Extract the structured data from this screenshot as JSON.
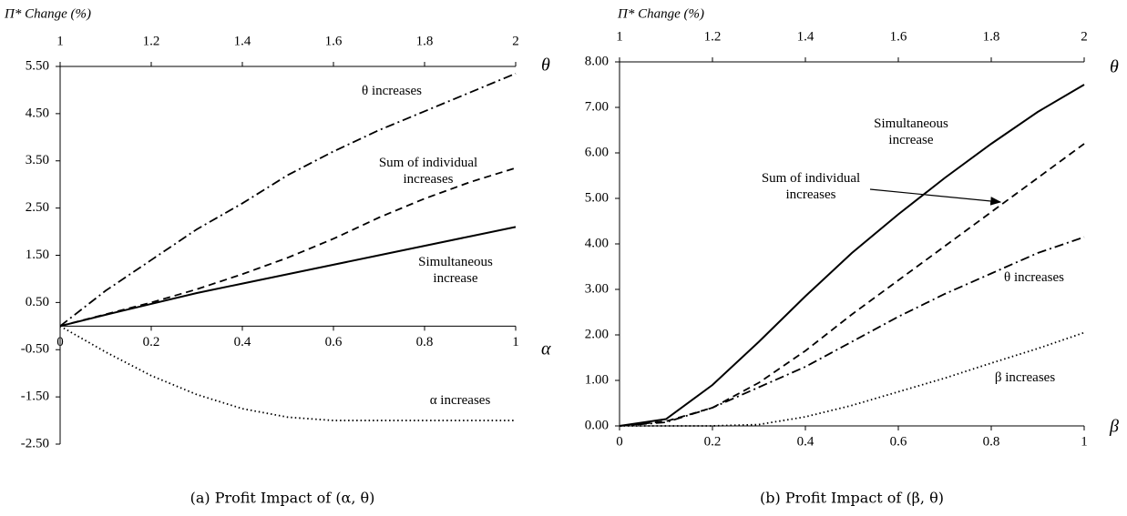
{
  "chart_data": [
    {
      "type": "line",
      "caption": "(a) Profit Impact of (α, θ)",
      "y_label": "Π* Change (%)",
      "x_label": "α",
      "x2_label": "θ",
      "x": [
        0,
        0.1,
        0.2,
        0.3,
        0.4,
        0.5,
        0.6,
        0.7,
        0.8,
        0.9,
        1
      ],
      "xlim": [
        0,
        1
      ],
      "xticks": [
        0,
        0.2,
        0.4,
        0.6,
        0.8,
        1
      ],
      "x2lim": [
        1,
        2
      ],
      "x2ticks": [
        1,
        1.2,
        1.4,
        1.6,
        1.8,
        2
      ],
      "ylim": [
        -2.5,
        5.5
      ],
      "yticks": [
        {
          "value": -2.5,
          "label": "-2.50"
        },
        {
          "value": -1.5,
          "label": "-1.50"
        },
        {
          "value": -0.5,
          "label": "-0.50"
        },
        {
          "value": 0.5,
          "label": "0.50"
        },
        {
          "value": 1.5,
          "label": "1.50"
        },
        {
          "value": 2.5,
          "label": "2.50"
        },
        {
          "value": 3.5,
          "label": "3.50"
        },
        {
          "value": 4.5,
          "label": "4.50"
        },
        {
          "value": 5.5,
          "label": "5.50"
        }
      ],
      "grid": false,
      "series": [
        {
          "name": "θ increases",
          "color": "#000000",
          "dash": "dash-dot",
          "values": [
            0,
            0.75,
            1.4,
            2.05,
            2.6,
            3.2,
            3.7,
            4.15,
            4.55,
            4.95,
            5.35
          ]
        },
        {
          "name": "Sum of individual increases",
          "color": "#000000",
          "dash": "dashed",
          "values": [
            0,
            0.25,
            0.5,
            0.78,
            1.1,
            1.45,
            1.85,
            2.3,
            2.7,
            3.05,
            3.35
          ]
        },
        {
          "name": "Simultaneous increase",
          "color": "#000000",
          "dash": "solid",
          "values": [
            0,
            0.24,
            0.47,
            0.7,
            0.9,
            1.1,
            1.3,
            1.5,
            1.7,
            1.9,
            2.1
          ]
        },
        {
          "name": "α increases",
          "color": "#000000",
          "dash": "dotted",
          "values": [
            0,
            -0.55,
            -1.05,
            -1.45,
            -1.75,
            -1.93,
            -2.0,
            -2.0,
            -2.0,
            -2.0,
            -2.0
          ]
        }
      ]
    },
    {
      "type": "line",
      "caption": "(b) Profit Impact of (β, θ)",
      "y_label": "Π* Change (%)",
      "x_label": "β",
      "x2_label": "θ",
      "x": [
        0,
        0.1,
        0.2,
        0.3,
        0.4,
        0.5,
        0.6,
        0.7,
        0.8,
        0.9,
        1
      ],
      "xlim": [
        0,
        1
      ],
      "xticks": [
        0,
        0.2,
        0.4,
        0.6,
        0.8,
        1
      ],
      "x2lim": [
        1,
        2
      ],
      "x2ticks": [
        1,
        1.2,
        1.4,
        1.6,
        1.8,
        2
      ],
      "ylim": [
        0,
        8
      ],
      "yticks": [
        {
          "value": 0,
          "label": "0.00"
        },
        {
          "value": 1,
          "label": "1.00"
        },
        {
          "value": 2,
          "label": "2.00"
        },
        {
          "value": 3,
          "label": "3.00"
        },
        {
          "value": 4,
          "label": "4.00"
        },
        {
          "value": 5,
          "label": "5.00"
        },
        {
          "value": 6,
          "label": "6.00"
        },
        {
          "value": 7,
          "label": "7.00"
        },
        {
          "value": 8,
          "label": "8.00"
        }
      ],
      "grid": false,
      "series": [
        {
          "name": "Simultaneous increase",
          "color": "#000000",
          "dash": "solid",
          "values": [
            0,
            0.15,
            0.9,
            1.85,
            2.85,
            3.8,
            4.65,
            5.45,
            6.2,
            6.9,
            7.5
          ]
        },
        {
          "name": "Sum of individual increases",
          "color": "#000000",
          "dash": "dashed",
          "values": [
            0,
            0.1,
            0.4,
            0.95,
            1.65,
            2.45,
            3.2,
            3.95,
            4.7,
            5.45,
            6.2
          ]
        },
        {
          "name": "θ increases",
          "color": "#000000",
          "dash": "dash-dot",
          "values": [
            0,
            0.08,
            0.4,
            0.85,
            1.3,
            1.85,
            2.4,
            2.9,
            3.35,
            3.8,
            4.15
          ]
        },
        {
          "name": "β increases",
          "color": "#000000",
          "dash": "dotted",
          "values": [
            0,
            0,
            0,
            0.03,
            0.2,
            0.45,
            0.75,
            1.05,
            1.38,
            1.7,
            2.05
          ]
        }
      ]
    }
  ]
}
